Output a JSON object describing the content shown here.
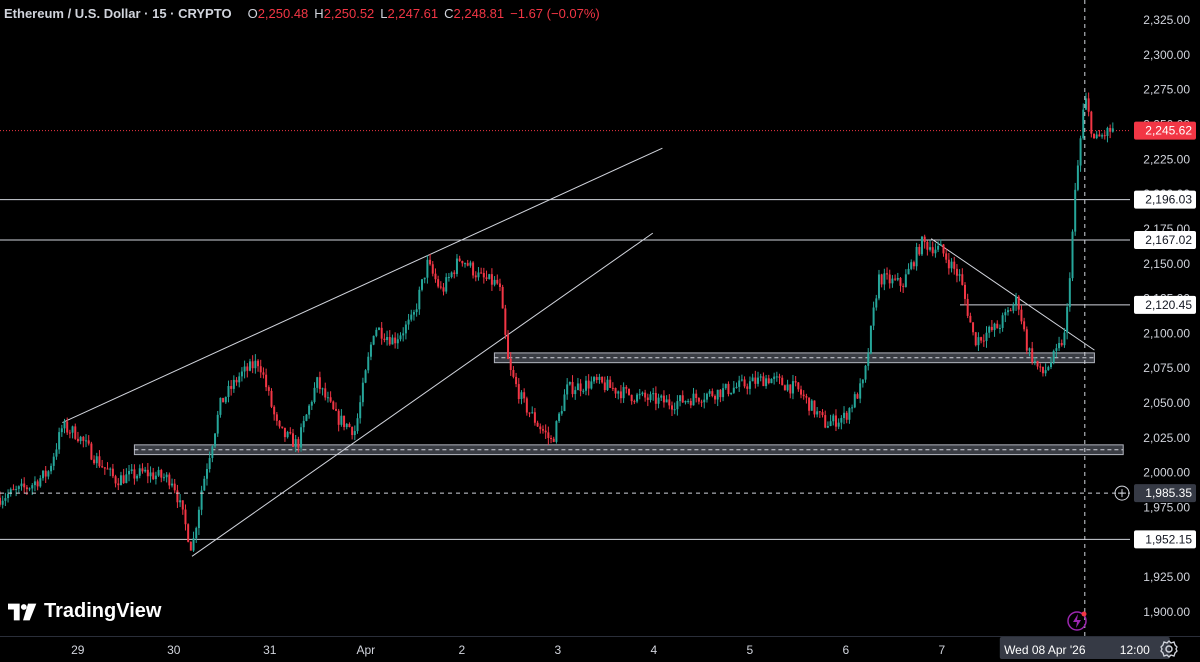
{
  "header": {
    "title": "Ethereum / U.S. Dollar · 15 · CRYPTO",
    "o_label": "O",
    "o_value": "2,250.48",
    "h_label": "H",
    "h_value": "2,250.52",
    "l_label": "L",
    "l_value": "2,247.61",
    "c_label": "C",
    "c_value": "2,248.81",
    "change": "−1.67 (−0.07%)"
  },
  "brand": {
    "name": "TradingView"
  },
  "colors": {
    "up": "#26a69a",
    "down": "#f23645",
    "line": "#d1d4dc",
    "zone": "#787b86",
    "label_bg": "#ffffff",
    "current": "#f23645",
    "background": "#000000"
  },
  "chart_data": {
    "type": "candlestick",
    "symbol": "Ethereum / U.S. Dollar",
    "interval": "15",
    "ylim": [
      1890,
      2340
    ],
    "y_ticks": [
      "2,325.00",
      "2,300.00",
      "2,275.00",
      "2,250.00",
      "2,225.00",
      "2,200.00",
      "2,175.00",
      "2,150.00",
      "2,125.00",
      "2,100.00",
      "2,075.00",
      "2,050.00",
      "2,025.00",
      "2,000.00",
      "1,975.00",
      "1,950.00",
      "1,925.00",
      "1,900.00"
    ],
    "y_tick_values": [
      2325,
      2300,
      2275,
      2250,
      2225,
      2200,
      2175,
      2150,
      2125,
      2100,
      2075,
      2050,
      2025,
      2000,
      1975,
      1950,
      1925,
      1900
    ],
    "x_ticks": [
      {
        "label": "29",
        "t": 0.8
      },
      {
        "label": "30",
        "t": 1.8
      },
      {
        "label": "31",
        "t": 2.8
      },
      {
        "label": "Apr",
        "t": 3.8
      },
      {
        "label": "2",
        "t": 4.8
      },
      {
        "label": "3",
        "t": 5.8
      },
      {
        "label": "4",
        "t": 6.8
      },
      {
        "label": "5",
        "t": 7.8
      },
      {
        "label": "6",
        "t": 8.8
      },
      {
        "label": "7",
        "t": 9.8
      }
    ],
    "x_range": [
      0,
      12.5
    ],
    "crosshair": {
      "date_label": "Wed 08 Apr '26",
      "time_label": "12:00",
      "t": 11.3,
      "price": 1985.35,
      "price_label": "1,985.35"
    },
    "current_price": {
      "value": 2245.62,
      "label": "2,245.62"
    },
    "horizontal_levels": [
      {
        "value": 2196.03,
        "label": "2,196.03"
      },
      {
        "value": 2167.02,
        "label": "2,167.02"
      },
      {
        "value": 1952.15,
        "label": "1,952.15"
      },
      {
        "value": 2120.45,
        "label": "2,120.45",
        "from_t": 10.0
      }
    ],
    "zones": [
      {
        "low": 2079,
        "high": 2086,
        "from_t": 5.15,
        "to_t": 11.4
      },
      {
        "low": 2013,
        "high": 2020,
        "from_t": 1.4,
        "to_t": 11.7
      }
    ],
    "trendlines": [
      {
        "t1": 0.65,
        "p1": 2036,
        "t2": 6.9,
        "p2": 2233
      },
      {
        "t1": 2.0,
        "p1": 1940,
        "t2": 6.8,
        "p2": 2172
      },
      {
        "t1": 9.7,
        "p1": 2168,
        "t2": 11.4,
        "p2": 2088
      }
    ],
    "price_path": [
      [
        0.0,
        1982
      ],
      [
        0.3,
        1990
      ],
      [
        0.5,
        2000
      ],
      [
        0.65,
        2033
      ],
      [
        0.8,
        2028
      ],
      [
        1.0,
        2010
      ],
      [
        1.2,
        1995
      ],
      [
        1.5,
        2000
      ],
      [
        1.8,
        1995
      ],
      [
        2.0,
        1945
      ],
      [
        2.1,
        1988
      ],
      [
        2.3,
        2050
      ],
      [
        2.5,
        2070
      ],
      [
        2.7,
        2080
      ],
      [
        2.9,
        2030
      ],
      [
        3.1,
        2020
      ],
      [
        3.3,
        2065
      ],
      [
        3.5,
        2040
      ],
      [
        3.7,
        2030
      ],
      [
        3.9,
        2105
      ],
      [
        4.1,
        2095
      ],
      [
        4.3,
        2110
      ],
      [
        4.45,
        2150
      ],
      [
        4.6,
        2130
      ],
      [
        4.8,
        2155
      ],
      [
        5.0,
        2140
      ],
      [
        5.2,
        2135
      ],
      [
        5.3,
        2075
      ],
      [
        5.45,
        2050
      ],
      [
        5.6,
        2035
      ],
      [
        5.75,
        2022
      ],
      [
        5.9,
        2060
      ],
      [
        6.2,
        2065
      ],
      [
        6.6,
        2055
      ],
      [
        7.0,
        2050
      ],
      [
        7.3,
        2055
      ],
      [
        7.6,
        2060
      ],
      [
        8.0,
        2068
      ],
      [
        8.3,
        2060
      ],
      [
        8.6,
        2035
      ],
      [
        8.8,
        2040
      ],
      [
        9.0,
        2065
      ],
      [
        9.15,
        2140
      ],
      [
        9.4,
        2135
      ],
      [
        9.6,
        2165
      ],
      [
        9.8,
        2160
      ],
      [
        10.0,
        2140
      ],
      [
        10.15,
        2095
      ],
      [
        10.4,
        2105
      ],
      [
        10.6,
        2125
      ],
      [
        10.7,
        2090
      ],
      [
        10.85,
        2070
      ],
      [
        11.0,
        2085
      ],
      [
        11.1,
        2100
      ],
      [
        11.2,
        2200
      ],
      [
        11.3,
        2270
      ],
      [
        11.4,
        2238
      ],
      [
        11.55,
        2245
      ],
      [
        11.6,
        2246
      ]
    ]
  }
}
